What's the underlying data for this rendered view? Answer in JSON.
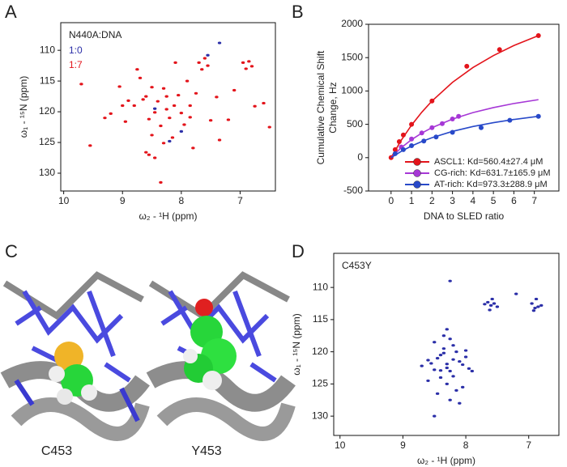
{
  "chart_data": [
    {
      "type": "scatter",
      "panel": "A",
      "annotation": "N440A:DNA",
      "xlabel": "ω₂ - ¹H (ppm)",
      "ylabel": "ω₁ - ¹⁵N (ppm)",
      "xlim": [
        10.05,
        6.4
      ],
      "ylim": [
        105.5,
        132.9
      ],
      "y_inverted": true,
      "xticks": [
        10,
        9,
        8,
        7
      ],
      "yticks": [
        110,
        115,
        120,
        125,
        130
      ],
      "series": [
        {
          "name": "1:0",
          "color": "#2b2fa8",
          "x": [
            7.35,
            8.0,
            8.2,
            7.55,
            8.45
          ],
          "values": [
            108.8,
            123.2,
            124.8,
            110.8,
            119.5
          ]
        },
        {
          "name": "1:7",
          "color": "#e3141b",
          "x": [
            9.7,
            9.55,
            9.05,
            9.0,
            8.95,
            8.75,
            8.7,
            8.6,
            8.55,
            8.5,
            8.45,
            8.4,
            8.35,
            8.3,
            8.25,
            8.2,
            8.15,
            8.1,
            8.05,
            8.0,
            7.95,
            7.9,
            7.85,
            7.8,
            7.7,
            7.65,
            7.6,
            7.55,
            7.5,
            7.4,
            7.35,
            7.2,
            7.1,
            6.95,
            6.9,
            6.85,
            6.8,
            6.75,
            6.6,
            6.5,
            8.35,
            8.45,
            8.6,
            9.2,
            9.3,
            8.8,
            8.65,
            8.5,
            8.25,
            8.3,
            7.85,
            7.75,
            8.9,
            8.55,
            8.12
          ],
          "values": [
            115.5,
            125.5,
            115.9,
            119.0,
            121.6,
            113.1,
            114.5,
            117.5,
            121.2,
            123.8,
            120.1,
            118.3,
            122.3,
            116.2,
            119.6,
            121.0,
            124.2,
            112.0,
            117.3,
            120.2,
            122.1,
            115.0,
            119.0,
            125.9,
            112.0,
            113.1,
            111.3,
            112.5,
            121.4,
            117.6,
            124.6,
            121.3,
            116.5,
            112.0,
            113.0,
            111.8,
            112.6,
            119.1,
            118.6,
            122.5,
            131.5,
            127.5,
            126.6,
            120.3,
            121.0,
            119.0,
            118.0,
            116.0,
            117.5,
            125.1,
            120.9,
            117.0,
            118.2,
            127.0,
            119.0
          ]
        }
      ]
    },
    {
      "type": "line",
      "panel": "B",
      "xlabel": "DNA to SLED ratio",
      "ylabel": [
        "Cumulative Chemical Shift",
        "Change, Hz"
      ],
      "xlim": [
        -1.1,
        8.2
      ],
      "ylim": [
        -500,
        2000
      ],
      "xticks": [
        0,
        1,
        2,
        3,
        4,
        5,
        6,
        7
      ],
      "yticks": [
        -500,
        0,
        500,
        1000,
        1500,
        2000
      ],
      "legend": "lower right",
      "series": [
        {
          "name": "ASCL1:    Kd=560.4±27.4 μM",
          "color": "#e3141b",
          "x": [
            0,
            0.2,
            0.4,
            0.6,
            1,
            2,
            3.7,
            5.3,
            7.2
          ],
          "values": [
            0,
            120,
            240,
            340,
            500,
            850,
            1370,
            1620,
            1830
          ],
          "fit_x": [
            0,
            0.5,
            1,
            1.5,
            2,
            3,
            4,
            5,
            6,
            7.2
          ],
          "fit_values": [
            0,
            263,
            488,
            681,
            850,
            1129,
            1351,
            1531,
            1681,
            1830
          ]
        },
        {
          "name": "CG-rich: Kd=631.7±165.9 μM",
          "color": "#a637d6",
          "x": [
            0.5,
            1,
            1.5,
            2,
            2.5,
            3,
            3.3
          ],
          "values": [
            160,
            280,
            370,
            450,
            510,
            580,
            620
          ],
          "fit_x": [
            0,
            0.5,
            1,
            1.5,
            2,
            3,
            4,
            5,
            6,
            7.2
          ],
          "fit_values": [
            0,
            150,
            270,
            368,
            450,
            579,
            676,
            751,
            812,
            870
          ]
        },
        {
          "name": "AT-rich: Kd=973.3±288.9 μM",
          "color": "#2849c9",
          "x": [
            0.2,
            0.6,
            1,
            1.6,
            2.2,
            3,
            4.4,
            5.8,
            7.2
          ],
          "values": [
            60,
            120,
            180,
            250,
            310,
            380,
            450,
            560,
            620
          ],
          "fit_x": [
            0,
            0.5,
            1,
            1.5,
            2,
            3,
            4,
            5,
            6,
            7.2
          ],
          "fit_values": [
            0,
            95,
            175,
            242,
            300,
            394,
            467,
            525,
            573,
            620
          ]
        }
      ]
    },
    {
      "type": "scatter",
      "panel": "D",
      "annotation": "C453Y",
      "xlabel": "ω₂ - ¹H (ppm)",
      "ylabel": "ω₁ - ¹⁵N (ppm)",
      "xlim": [
        10.1,
        6.52
      ],
      "ylim": [
        104.7,
        133.0
      ],
      "y_inverted": true,
      "xticks": [
        10,
        9,
        8,
        7
      ],
      "yticks": [
        110,
        115,
        120,
        125,
        130
      ],
      "series": [
        {
          "color": "#2b2fa8",
          "x": [
            8.25,
            8.5,
            7.2,
            7.65,
            7.6,
            7.55,
            7.5,
            7.62,
            7.58,
            7.7,
            6.95,
            6.9,
            6.85,
            6.8,
            6.92,
            6.88,
            8.3,
            8.35,
            8.25,
            8.2,
            8.15,
            8.4,
            8.45,
            8.1,
            8.05,
            8.3,
            8.25,
            8.5,
            8.55,
            8.35,
            8.2,
            8.0,
            7.95,
            8.4,
            8.3,
            8.15,
            8.6,
            8.45,
            8.25,
            8.1,
            8.35,
            8.5,
            8.2,
            7.9,
            8.3,
            8.4,
            8.6,
            8.05,
            8.0,
            8.7
          ],
          "values": [
            109.0,
            130.0,
            111.0,
            112.3,
            112.8,
            112.5,
            113.0,
            113.5,
            111.8,
            112.6,
            112.5,
            113.2,
            113.0,
            112.8,
            113.6,
            111.8,
            116.5,
            117.5,
            118.0,
            119.0,
            120.0,
            120.5,
            121.0,
            121.5,
            122.0,
            122.5,
            123.0,
            122.8,
            121.8,
            120.2,
            121.2,
            120.8,
            122.6,
            124.0,
            125.0,
            126.0,
            124.5,
            126.5,
            127.5,
            128.0,
            119.5,
            118.5,
            123.8,
            123.0,
            121.9,
            122.9,
            121.3,
            125.5,
            119.8,
            122.2
          ]
        }
      ]
    }
  ],
  "structures": {
    "panel": "C",
    "labels": [
      "C453",
      "Y453"
    ]
  }
}
